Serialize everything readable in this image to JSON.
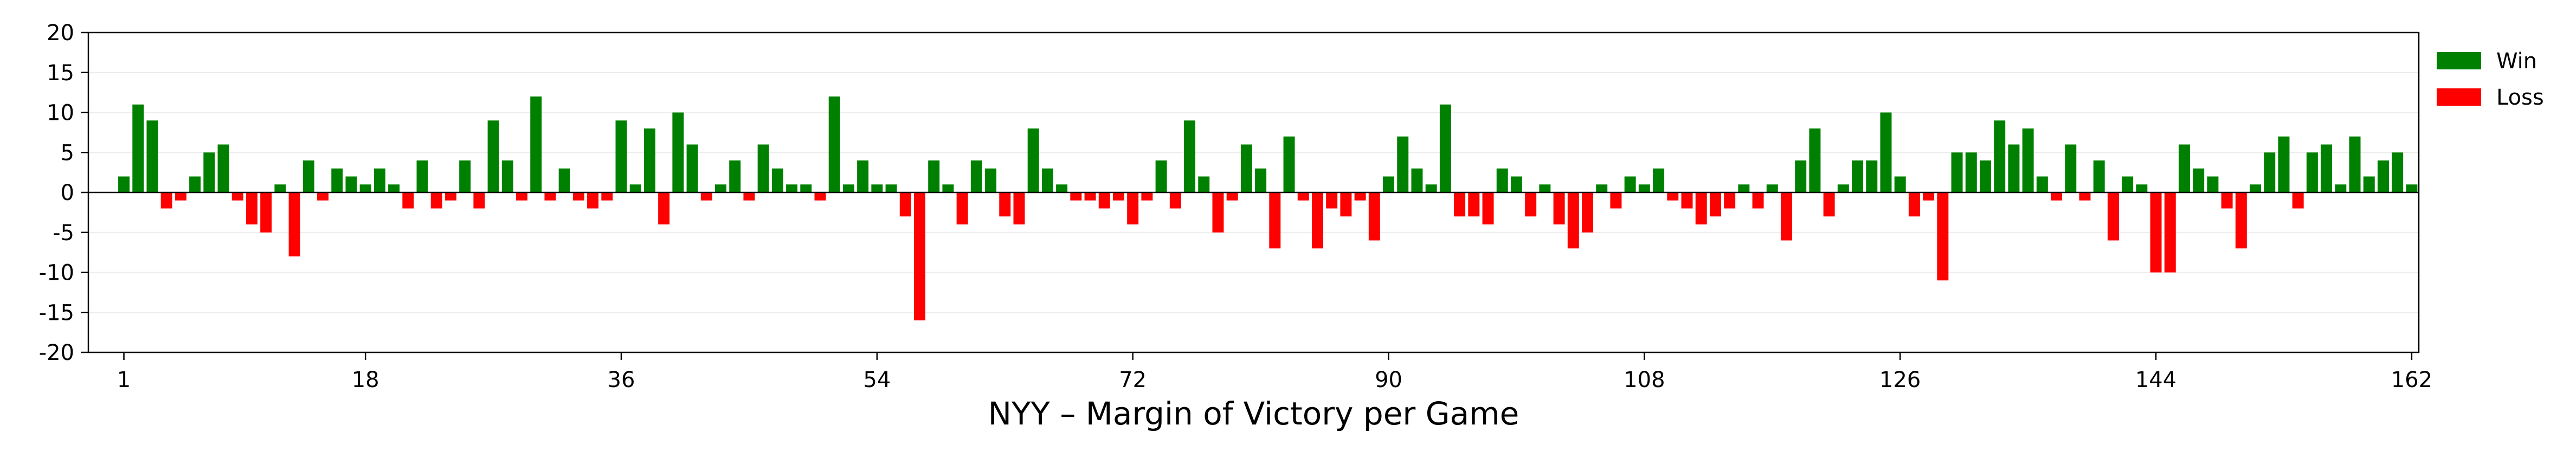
{
  "chart_data": {
    "type": "bar",
    "xlabel": "NYY – Margin of Victory per Game",
    "ylabel": "",
    "title": "",
    "ylim": [
      -20,
      20
    ],
    "yticks": [
      -20,
      -15,
      -10,
      -5,
      0,
      5,
      10,
      15,
      20
    ],
    "xticks": [
      1,
      18,
      36,
      54,
      72,
      90,
      108,
      126,
      144,
      162
    ],
    "xlim": [
      -1.5,
      162.5
    ],
    "grid": "horizontal",
    "legend_placement": "upper right, outside plot",
    "colors": {
      "win": "#008000",
      "loss": "#ff0000"
    },
    "legend": [
      {
        "label": "Win",
        "color": "#008000"
      },
      {
        "label": "Loss",
        "color": "#ff0000"
      }
    ],
    "x": [
      1,
      2,
      3,
      4,
      5,
      6,
      7,
      8,
      9,
      10,
      11,
      12,
      13,
      14,
      15,
      16,
      17,
      18,
      19,
      20,
      21,
      22,
      23,
      24,
      25,
      26,
      27,
      28,
      29,
      30,
      31,
      32,
      33,
      34,
      35,
      36,
      37,
      38,
      39,
      40,
      41,
      42,
      43,
      44,
      45,
      46,
      47,
      48,
      49,
      50,
      51,
      52,
      53,
      54,
      55,
      56,
      57,
      58,
      59,
      60,
      61,
      62,
      63,
      64,
      65,
      66,
      67,
      68,
      69,
      70,
      71,
      72,
      73,
      74,
      75,
      76,
      77,
      78,
      79,
      80,
      81,
      82,
      83,
      84,
      85,
      86,
      87,
      88,
      89,
      90,
      91,
      92,
      93,
      94,
      95,
      96,
      97,
      98,
      99,
      100,
      101,
      102,
      103,
      104,
      105,
      106,
      107,
      108,
      109,
      110,
      111,
      112,
      113,
      114,
      115,
      116,
      117,
      118,
      119,
      120,
      121,
      122,
      123,
      124,
      125,
      126,
      127,
      128,
      129,
      130,
      131,
      132,
      133,
      134,
      135,
      136,
      137,
      138,
      139,
      140,
      141,
      142,
      143,
      144,
      145,
      146,
      147,
      148,
      149,
      150,
      151,
      152,
      153,
      154,
      155,
      156,
      157,
      158,
      159,
      160,
      161,
      162
    ],
    "values": [
      2,
      11,
      9,
      -2,
      -1,
      2,
      5,
      6,
      -1,
      -4,
      -5,
      1,
      -8,
      4,
      -1,
      3,
      2,
      1,
      3,
      1,
      -2,
      4,
      -2,
      -1,
      4,
      -2,
      9,
      4,
      -1,
      12,
      -1,
      3,
      -1,
      -2,
      -1,
      9,
      1,
      8,
      -4,
      10,
      6,
      -1,
      1,
      4,
      -1,
      6,
      3,
      1,
      1,
      -1,
      12,
      1,
      4,
      1,
      1,
      -3,
      -16,
      4,
      1,
      -4,
      4,
      3,
      -3,
      -4,
      8,
      3,
      1,
      -1,
      -1,
      -2,
      -1,
      -4,
      -1,
      4,
      -2,
      9,
      2,
      -5,
      -1,
      6,
      3,
      -7,
      7,
      -1,
      -7,
      -2,
      -3,
      -1,
      -6,
      2,
      7,
      3,
      1,
      11,
      -3,
      -3,
      -4,
      3,
      2,
      -3,
      1,
      -4,
      -7,
      -5,
      1,
      -2,
      2,
      1,
      3,
      -1,
      -2,
      -4,
      -3,
      -2,
      1,
      -2,
      1,
      -6,
      4,
      8,
      -3,
      1,
      4,
      4,
      10,
      2,
      -3,
      -1,
      -11,
      5,
      5,
      4,
      9,
      6,
      8,
      2,
      -1,
      6,
      -1,
      4,
      -6,
      2,
      1,
      -10,
      -10,
      6,
      3,
      2,
      -2,
      -7,
      1,
      5,
      7,
      -2,
      5,
      6,
      1,
      7,
      2,
      4,
      5,
      1
    ]
  }
}
